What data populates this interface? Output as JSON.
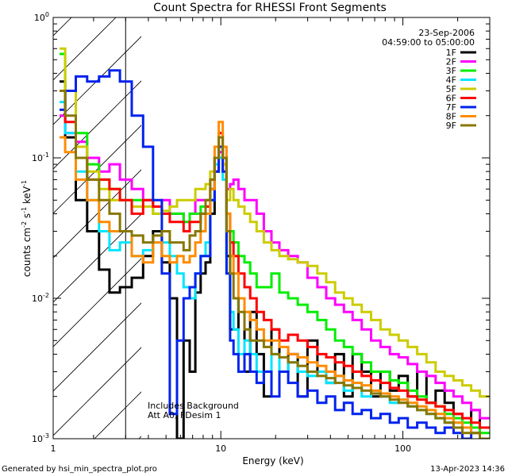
{
  "chart_data": {
    "type": "line",
    "title": "Count Spectra for RHESSI Front Segments",
    "xlabel": "Energy (keV)",
    "ylabel": "counts cm",
    "ylabel_exp1": "-2",
    "ylabel_mid": " s",
    "ylabel_exp2": "-1",
    "ylabel_end": " keV",
    "ylabel_exp3": "-1",
    "x_scale": "log",
    "y_scale": "log",
    "xlim": [
      1.2,
      300
    ],
    "ylim": [
      0.001,
      1
    ],
    "x_ticks": [
      {
        "value": 1,
        "label": "1"
      },
      {
        "value": 10,
        "label": "10"
      },
      {
        "value": 100,
        "label": "100"
      }
    ],
    "y_ticks": [
      {
        "value": 1,
        "base": "10",
        "exp": "0"
      },
      {
        "value": 0.1,
        "base": "10",
        "exp": "-1"
      },
      {
        "value": 0.01,
        "base": "10",
        "exp": "-2"
      },
      {
        "value": 0.001,
        "base": "10",
        "exp": "-3"
      }
    ],
    "hatched_region": [
      1,
      3
    ],
    "annotations": {
      "date": "23-Sep-2006",
      "time_range": "04:59:00 to 05:00:00",
      "note1": "Includes Background",
      "note2": "Att A0, FDesim 1"
    },
    "footer_left": "Generated by hsi_min_spectra_plot.pro",
    "footer_right": "13-Apr-2023 14:36",
    "series": [
      {
        "name": "1F",
        "color": "#000000",
        "x": [
          1.3,
          1.5,
          1.7,
          2.0,
          2.3,
          2.6,
          3.0,
          3.5,
          4.0,
          4.5,
          5.0,
          5.5,
          6.0,
          6.5,
          7.0,
          7.5,
          8.0,
          8.5,
          9.0,
          9.5,
          10.0,
          10.5,
          11.0,
          11.5,
          12.0,
          13.0,
          14.0,
          15.0,
          16.5,
          18.0,
          20.0,
          22.0,
          25.0,
          28.0,
          32.0,
          36.0,
          40.0,
          45.0,
          50.0,
          56.0,
          63.0,
          71.0,
          80.0,
          90.0,
          100.0,
          113.0,
          127.0,
          143.0,
          160.0,
          180.0,
          200.0,
          225.0,
          250.0,
          280.0
        ],
        "y": [
          0.35,
          0.14,
          0.05,
          0.03,
          0.016,
          0.011,
          0.012,
          0.014,
          0.02,
          0.03,
          0.018,
          0.01,
          0.001,
          0.005,
          0.003,
          0.011,
          0.015,
          0.018,
          0.04,
          0.08,
          0.12,
          0.1,
          0.02,
          0.006,
          0.006,
          0.01,
          0.003,
          0.008,
          0.004,
          0.002,
          0.006,
          0.003,
          0.004,
          0.002,
          0.005,
          0.003,
          0.0025,
          0.004,
          0.002,
          0.004,
          0.003,
          0.002,
          0.003,
          0.0022,
          0.0028,
          0.002,
          0.003,
          0.0018,
          0.0022,
          0.0018,
          0.0015,
          0.0012,
          0.0016,
          0.001
        ]
      },
      {
        "name": "2F",
        "color": "#ff00ff",
        "x": [
          1.3,
          1.5,
          1.7,
          2.0,
          2.3,
          2.6,
          3.0,
          3.5,
          4.0,
          4.5,
          5.0,
          5.5,
          6.0,
          6.5,
          7.0,
          7.5,
          8.0,
          8.5,
          9.0,
          9.5,
          10.0,
          10.5,
          11.0,
          11.5,
          12.0,
          13.0,
          14.0,
          15.0,
          16.5,
          18.0,
          20.0,
          22.0,
          25.0,
          28.0,
          32.0,
          36.0,
          40.0,
          45.0,
          50.0,
          56.0,
          63.0,
          71.0,
          80.0,
          90.0,
          100.0,
          113.0,
          127.0,
          143.0,
          160.0,
          180.0,
          200.0,
          225.0,
          250.0,
          280.0
        ],
        "y": [
          0.2,
          0.15,
          0.13,
          0.1,
          0.08,
          0.09,
          0.07,
          0.06,
          0.05,
          0.045,
          0.05,
          0.04,
          0.04,
          0.035,
          0.04,
          0.05,
          0.05,
          0.05,
          0.07,
          0.1,
          0.11,
          0.08,
          0.06,
          0.065,
          0.07,
          0.06,
          0.05,
          0.05,
          0.04,
          0.03,
          0.025,
          0.022,
          0.02,
          0.018,
          0.014,
          0.012,
          0.01,
          0.009,
          0.008,
          0.007,
          0.006,
          0.005,
          0.0045,
          0.004,
          0.0038,
          0.0034,
          0.003,
          0.0028,
          0.0025,
          0.0022,
          0.002,
          0.0018,
          0.0016,
          0.0014
        ]
      },
      {
        "name": "3F",
        "color": "#00ee00",
        "x": [
          1.3,
          1.5,
          1.7,
          2.0,
          2.3,
          2.6,
          3.0,
          3.5,
          4.0,
          4.5,
          5.0,
          5.5,
          6.0,
          6.5,
          7.0,
          7.5,
          8.0,
          8.5,
          9.0,
          9.5,
          10.0,
          10.5,
          11.0,
          11.5,
          12.0,
          13.0,
          14.0,
          15.0,
          16.5,
          18.0,
          20.0,
          22.0,
          25.0,
          28.0,
          32.0,
          36.0,
          40.0,
          45.0,
          50.0,
          56.0,
          63.0,
          71.0,
          80.0,
          90.0,
          100.0,
          113.0,
          127.0,
          143.0,
          160.0,
          180.0,
          200.0,
          225.0,
          250.0,
          280.0
        ],
        "y": [
          0.55,
          0.3,
          0.15,
          0.09,
          0.07,
          0.06,
          0.05,
          0.05,
          0.05,
          0.04,
          0.04,
          0.04,
          0.04,
          0.035,
          0.04,
          0.04,
          0.045,
          0.05,
          0.06,
          0.1,
          0.12,
          0.08,
          0.04,
          0.03,
          0.025,
          0.02,
          0.018,
          0.015,
          0.012,
          0.012,
          0.015,
          0.011,
          0.01,
          0.009,
          0.008,
          0.007,
          0.006,
          0.005,
          0.0045,
          0.004,
          0.0035,
          0.003,
          0.003,
          0.0026,
          0.0025,
          0.0022,
          0.002,
          0.0018,
          0.0017,
          0.0015,
          0.0014,
          0.0013,
          0.0012,
          0.0011
        ]
      },
      {
        "name": "4F",
        "color": "#00e5ff",
        "x": [
          1.3,
          1.5,
          1.7,
          2.0,
          2.3,
          2.6,
          3.0,
          3.5,
          4.0,
          4.5,
          5.0,
          5.5,
          6.0,
          6.5,
          7.0,
          7.5,
          8.0,
          8.5,
          9.0,
          9.5,
          10.0,
          10.5,
          11.0,
          11.5,
          12.0,
          13.0,
          14.0,
          15.0,
          16.5,
          18.0,
          20.0,
          22.0,
          25.0,
          28.0,
          32.0,
          36.0,
          40.0,
          45.0,
          50.0,
          56.0,
          63.0,
          71.0,
          80.0,
          90.0,
          100.0,
          113.0,
          127.0,
          143.0,
          160.0,
          180.0,
          200.0,
          225.0,
          250.0,
          280.0
        ],
        "y": [
          0.25,
          0.15,
          0.08,
          0.05,
          0.03,
          0.022,
          0.025,
          0.02,
          0.022,
          0.025,
          0.025,
          0.02,
          0.015,
          0.012,
          0.01,
          0.015,
          0.02,
          0.025,
          0.05,
          0.09,
          0.1,
          0.07,
          0.015,
          0.008,
          0.006,
          0.004,
          0.005,
          0.004,
          0.003,
          0.003,
          0.004,
          0.003,
          0.0035,
          0.003,
          0.0028,
          0.003,
          0.0025,
          0.0028,
          0.0022,
          0.0025,
          0.002,
          0.0022,
          0.002,
          0.0018,
          0.0019,
          0.0017,
          0.0016,
          0.0015,
          0.0014,
          0.0013,
          0.0013,
          0.0012,
          0.0011,
          0.001
        ]
      },
      {
        "name": "5F",
        "color": "#cccc00",
        "x": [
          1.3,
          1.5,
          1.7,
          2.0,
          2.3,
          2.6,
          3.0,
          3.5,
          4.0,
          4.5,
          5.0,
          5.5,
          6.0,
          6.5,
          7.0,
          7.5,
          8.0,
          8.5,
          9.0,
          9.5,
          10.0,
          10.5,
          11.0,
          11.5,
          12.0,
          13.0,
          14.0,
          15.0,
          16.5,
          18.0,
          20.0,
          22.0,
          25.0,
          28.0,
          32.0,
          36.0,
          40.0,
          45.0,
          50.0,
          56.0,
          63.0,
          71.0,
          80.0,
          90.0,
          100.0,
          113.0,
          127.0,
          143.0,
          160.0,
          180.0,
          200.0,
          225.0,
          250.0,
          280.0
        ],
        "y": [
          0.6,
          0.3,
          0.12,
          0.08,
          0.06,
          0.05,
          0.05,
          0.045,
          0.045,
          0.04,
          0.042,
          0.045,
          0.05,
          0.05,
          0.05,
          0.06,
          0.06,
          0.065,
          0.08,
          0.1,
          0.12,
          0.09,
          0.05,
          0.06,
          0.05,
          0.045,
          0.04,
          0.035,
          0.03,
          0.025,
          0.022,
          0.02,
          0.019,
          0.018,
          0.017,
          0.015,
          0.013,
          0.011,
          0.01,
          0.009,
          0.008,
          0.007,
          0.006,
          0.0055,
          0.005,
          0.0045,
          0.004,
          0.0035,
          0.003,
          0.0028,
          0.0026,
          0.0024,
          0.0022,
          0.002
        ]
      },
      {
        "name": "6F",
        "color": "#ff0000",
        "x": [
          1.3,
          1.5,
          1.7,
          2.0,
          2.3,
          2.6,
          3.0,
          3.5,
          4.0,
          4.5,
          5.0,
          5.5,
          6.0,
          6.5,
          7.0,
          7.5,
          8.0,
          8.5,
          9.0,
          9.5,
          10.0,
          10.5,
          11.0,
          11.5,
          12.0,
          13.0,
          14.0,
          15.0,
          16.5,
          18.0,
          20.0,
          22.0,
          25.0,
          28.0,
          32.0,
          36.0,
          40.0,
          45.0,
          50.0,
          56.0,
          63.0,
          71.0,
          80.0,
          90.0,
          100.0,
          113.0,
          127.0,
          143.0,
          160.0,
          180.0,
          200.0,
          225.0,
          250.0,
          280.0
        ],
        "y": [
          0.3,
          0.18,
          0.1,
          0.07,
          0.07,
          0.06,
          0.05,
          0.04,
          0.05,
          0.045,
          0.04,
          0.035,
          0.035,
          0.03,
          0.035,
          0.035,
          0.04,
          0.045,
          0.06,
          0.1,
          0.15,
          0.1,
          0.04,
          0.025,
          0.02,
          0.015,
          0.012,
          0.01,
          0.008,
          0.007,
          0.006,
          0.005,
          0.0055,
          0.005,
          0.0045,
          0.004,
          0.0038,
          0.0035,
          0.0033,
          0.003,
          0.0028,
          0.0026,
          0.0025,
          0.0023,
          0.0022,
          0.002,
          0.0019,
          0.0018,
          0.0017,
          0.0016,
          0.0015,
          0.0014,
          0.0013,
          0.0012
        ]
      },
      {
        "name": "7F",
        "color": "#0022ee",
        "x": [
          1.3,
          1.5,
          1.7,
          2.0,
          2.3,
          2.6,
          3.0,
          3.5,
          4.0,
          4.5,
          5.0,
          5.5,
          6.0,
          6.5,
          7.0,
          7.5,
          8.0,
          8.5,
          9.0,
          9.5,
          10.0,
          10.5,
          11.0,
          11.5,
          12.0,
          13.0,
          14.0,
          15.0,
          16.5,
          18.0,
          20.0,
          22.0,
          25.0,
          28.0,
          32.0,
          36.0,
          40.0,
          45.0,
          50.0,
          56.0,
          63.0,
          71.0,
          80.0,
          90.0,
          100.0,
          113.0,
          127.0,
          143.0,
          160.0,
          180.0,
          200.0,
          225.0,
          250.0,
          280.0
        ],
        "y": [
          0.22,
          0.3,
          0.38,
          0.35,
          0.38,
          0.42,
          0.35,
          0.2,
          0.12,
          0.05,
          0.015,
          0.0015,
          0.005,
          0.01,
          0.012,
          0.015,
          0.02,
          0.02,
          0.05,
          0.08,
          0.12,
          0.08,
          0.015,
          0.005,
          0.004,
          0.003,
          0.004,
          0.003,
          0.0025,
          0.003,
          0.002,
          0.003,
          0.0025,
          0.002,
          0.0022,
          0.0018,
          0.002,
          0.0016,
          0.0018,
          0.0015,
          0.0016,
          0.0014,
          0.0015,
          0.0013,
          0.0014,
          0.0012,
          0.0013,
          0.0012,
          0.0011,
          0.0012,
          0.0011,
          0.001,
          0.0011,
          0.001
        ]
      },
      {
        "name": "8F",
        "color": "#ff8c00",
        "x": [
          1.3,
          1.5,
          1.7,
          2.0,
          2.3,
          2.6,
          3.0,
          3.5,
          4.0,
          4.5,
          5.0,
          5.5,
          6.0,
          6.5,
          7.0,
          7.5,
          8.0,
          8.5,
          9.0,
          9.5,
          10.0,
          10.5,
          11.0,
          11.5,
          12.0,
          13.0,
          14.0,
          15.0,
          16.5,
          18.0,
          20.0,
          22.0,
          25.0,
          28.0,
          32.0,
          36.0,
          40.0,
          45.0,
          50.0,
          56.0,
          63.0,
          71.0,
          80.0,
          90.0,
          100.0,
          113.0,
          127.0,
          143.0,
          160.0,
          180.0,
          200.0,
          225.0,
          250.0,
          280.0
        ],
        "y": [
          0.14,
          0.11,
          0.07,
          0.05,
          0.035,
          0.03,
          0.03,
          0.02,
          0.018,
          0.025,
          0.02,
          0.018,
          0.02,
          0.018,
          0.02,
          0.025,
          0.03,
          0.04,
          0.06,
          0.12,
          0.18,
          0.12,
          0.04,
          0.02,
          0.015,
          0.01,
          0.008,
          0.007,
          0.006,
          0.005,
          0.005,
          0.0045,
          0.004,
          0.0038,
          0.0035,
          0.0033,
          0.003,
          0.0028,
          0.0026,
          0.0025,
          0.0024,
          0.0022,
          0.0021,
          0.002,
          0.0019,
          0.0018,
          0.0017,
          0.0016,
          0.0015,
          0.0014,
          0.0013,
          0.0012,
          0.0011,
          0.001
        ]
      },
      {
        "name": "9F",
        "color": "#887700",
        "x": [
          1.3,
          1.5,
          1.7,
          2.0,
          2.3,
          2.6,
          3.0,
          3.5,
          4.0,
          4.5,
          5.0,
          5.5,
          6.0,
          6.5,
          7.0,
          7.5,
          8.0,
          8.5,
          9.0,
          9.5,
          10.0,
          10.5,
          11.0,
          11.5,
          12.0,
          13.0,
          14.0,
          15.0,
          16.5,
          18.0,
          20.0,
          22.0,
          25.0,
          28.0,
          32.0,
          36.0,
          40.0,
          45.0,
          50.0,
          56.0,
          63.0,
          71.0,
          80.0,
          90.0,
          100.0,
          113.0,
          127.0,
          143.0,
          160.0,
          180.0,
          200.0,
          225.0,
          250.0,
          280.0
        ],
        "y": [
          0.3,
          0.2,
          0.1,
          0.07,
          0.05,
          0.04,
          0.03,
          0.028,
          0.025,
          0.028,
          0.03,
          0.025,
          0.025,
          0.022,
          0.028,
          0.03,
          0.04,
          0.05,
          0.07,
          0.1,
          0.14,
          0.1,
          0.03,
          0.015,
          0.01,
          0.008,
          0.006,
          0.005,
          0.005,
          0.0045,
          0.004,
          0.0038,
          0.0035,
          0.0033,
          0.003,
          0.0028,
          0.0027,
          0.0025,
          0.0024,
          0.0023,
          0.0022,
          0.0021,
          0.002,
          0.0019,
          0.0018,
          0.0017,
          0.0016,
          0.0015,
          0.0014,
          0.0013,
          0.0012,
          0.0011,
          0.0011,
          0.001
        ]
      }
    ]
  }
}
